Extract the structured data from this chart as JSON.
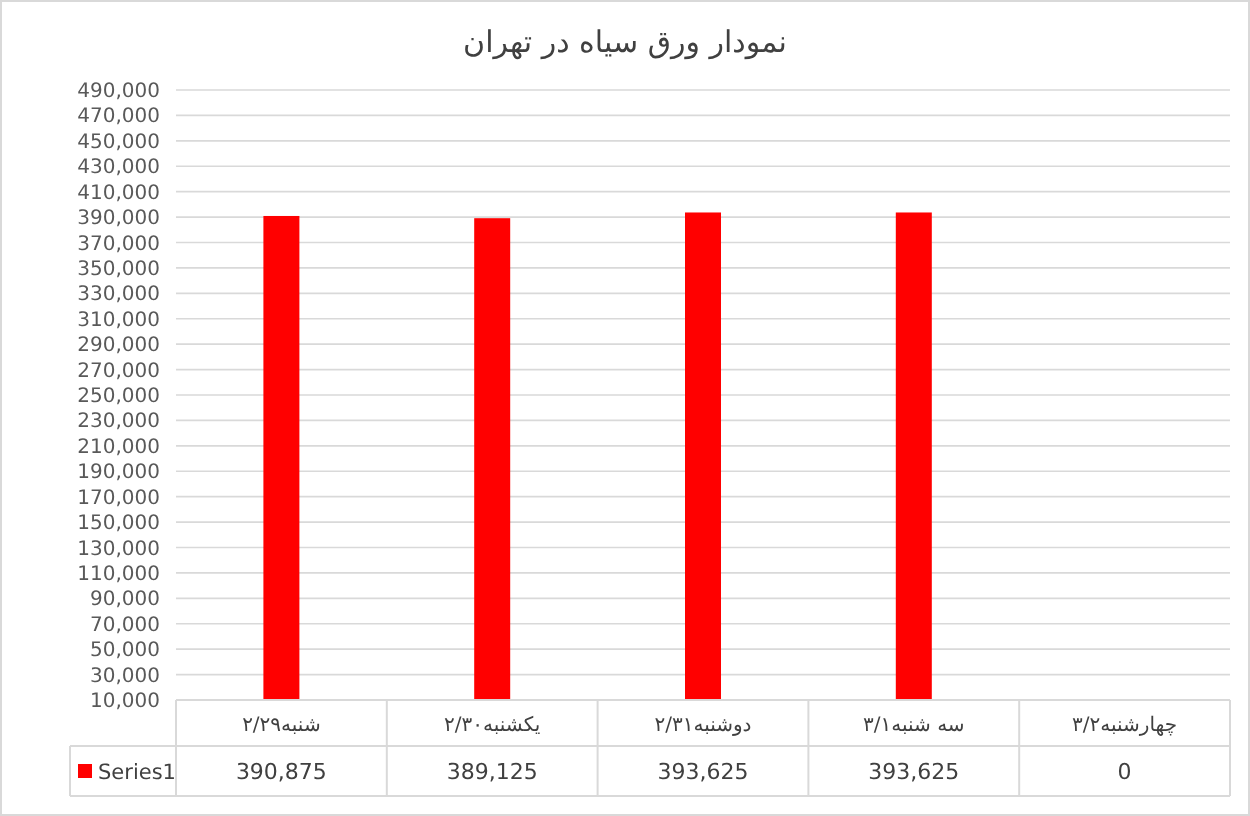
{
  "chart_data": {
    "type": "bar",
    "title": "نمودار ورق سیاه در تهران",
    "categories": [
      "شنبه۲/۲۹",
      "یکشنبه۲/۳۰",
      "دوشنبه۲/۳۱",
      "سه شنبه۳/۱",
      "چهارشنبه۳/۲"
    ],
    "series": [
      {
        "name": "Series1",
        "color": "#ff0000",
        "values": [
          390875,
          389125,
          393625,
          393625,
          null
        ],
        "value_labels": [
          "390,875",
          "389,125",
          "393,625",
          "393,625",
          "0"
        ]
      }
    ],
    "ylim": [
      10000,
      490000
    ],
    "yticks": [
      {
        "value": 10000,
        "label": "10,000"
      },
      {
        "value": 30000,
        "label": "30,000"
      },
      {
        "value": 50000,
        "label": "50,000"
      },
      {
        "value": 70000,
        "label": "70,000"
      },
      {
        "value": 90000,
        "label": "90,000"
      },
      {
        "value": 110000,
        "label": "110,000"
      },
      {
        "value": 130000,
        "label": "130,000"
      },
      {
        "value": 150000,
        "label": "150,000"
      },
      {
        "value": 170000,
        "label": "170,000"
      },
      {
        "value": 190000,
        "label": "190,000"
      },
      {
        "value": 210000,
        "label": "210,000"
      },
      {
        "value": 230000,
        "label": "230,000"
      },
      {
        "value": 250000,
        "label": "250,000"
      },
      {
        "value": 270000,
        "label": "270,000"
      },
      {
        "value": 290000,
        "label": "290,000"
      },
      {
        "value": 310000,
        "label": "310,000"
      },
      {
        "value": 330000,
        "label": "330,000"
      },
      {
        "value": 350000,
        "label": "350,000"
      },
      {
        "value": 370000,
        "label": "370,000"
      },
      {
        "value": 390000,
        "label": "390,000"
      },
      {
        "value": 410000,
        "label": "410,000"
      },
      {
        "value": 430000,
        "label": "430,000"
      },
      {
        "value": 450000,
        "label": "450,000"
      },
      {
        "value": 470000,
        "label": "470,000"
      },
      {
        "value": 490000,
        "label": "490,000"
      }
    ],
    "grid": "y",
    "legend": "bottom"
  }
}
